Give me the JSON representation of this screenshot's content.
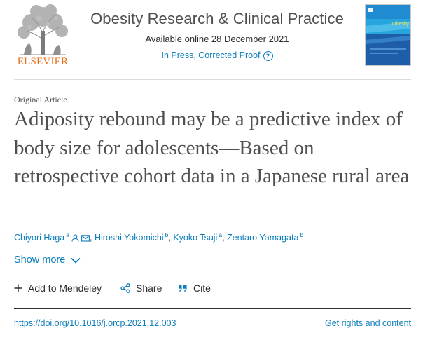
{
  "header": {
    "publisher_logo": "ELSEVIER",
    "journal_title": "Obesity Research & Clinical Practice",
    "availability": "Available online 28 December 2021",
    "status": "In Press, Corrected Proof",
    "help_icon": "question-circle-icon",
    "cover": {
      "title_line": "Obesity",
      "background": "#1f8bd1"
    }
  },
  "article": {
    "type": "Original Article",
    "title": "Adiposity rebound may be a predictive index of body size for adolescents—Based on retrospective cohort data in a Japanese rural area",
    "authors": [
      {
        "name": "Chiyori Haga",
        "affil": "a"
      },
      {
        "name": "Hiroshi Yokomichi",
        "affil": "b"
      },
      {
        "name": "Kyoko Tsuji",
        "affil": "a"
      },
      {
        "name": "Zentaro Yamagata",
        "affil": "b"
      }
    ],
    "author_separator": ",",
    "show_more": "Show more"
  },
  "actions": {
    "mendeley": "Add to Mendeley",
    "share": "Share",
    "cite": "Cite"
  },
  "footer": {
    "doi": "https://doi.org/10.1016/j.orcp.2021.12.003",
    "rights": "Get rights and content"
  },
  "colors": {
    "link": "#0c7dbb",
    "elsevier_orange": "#e9711c",
    "text": "#2e2e2e"
  }
}
